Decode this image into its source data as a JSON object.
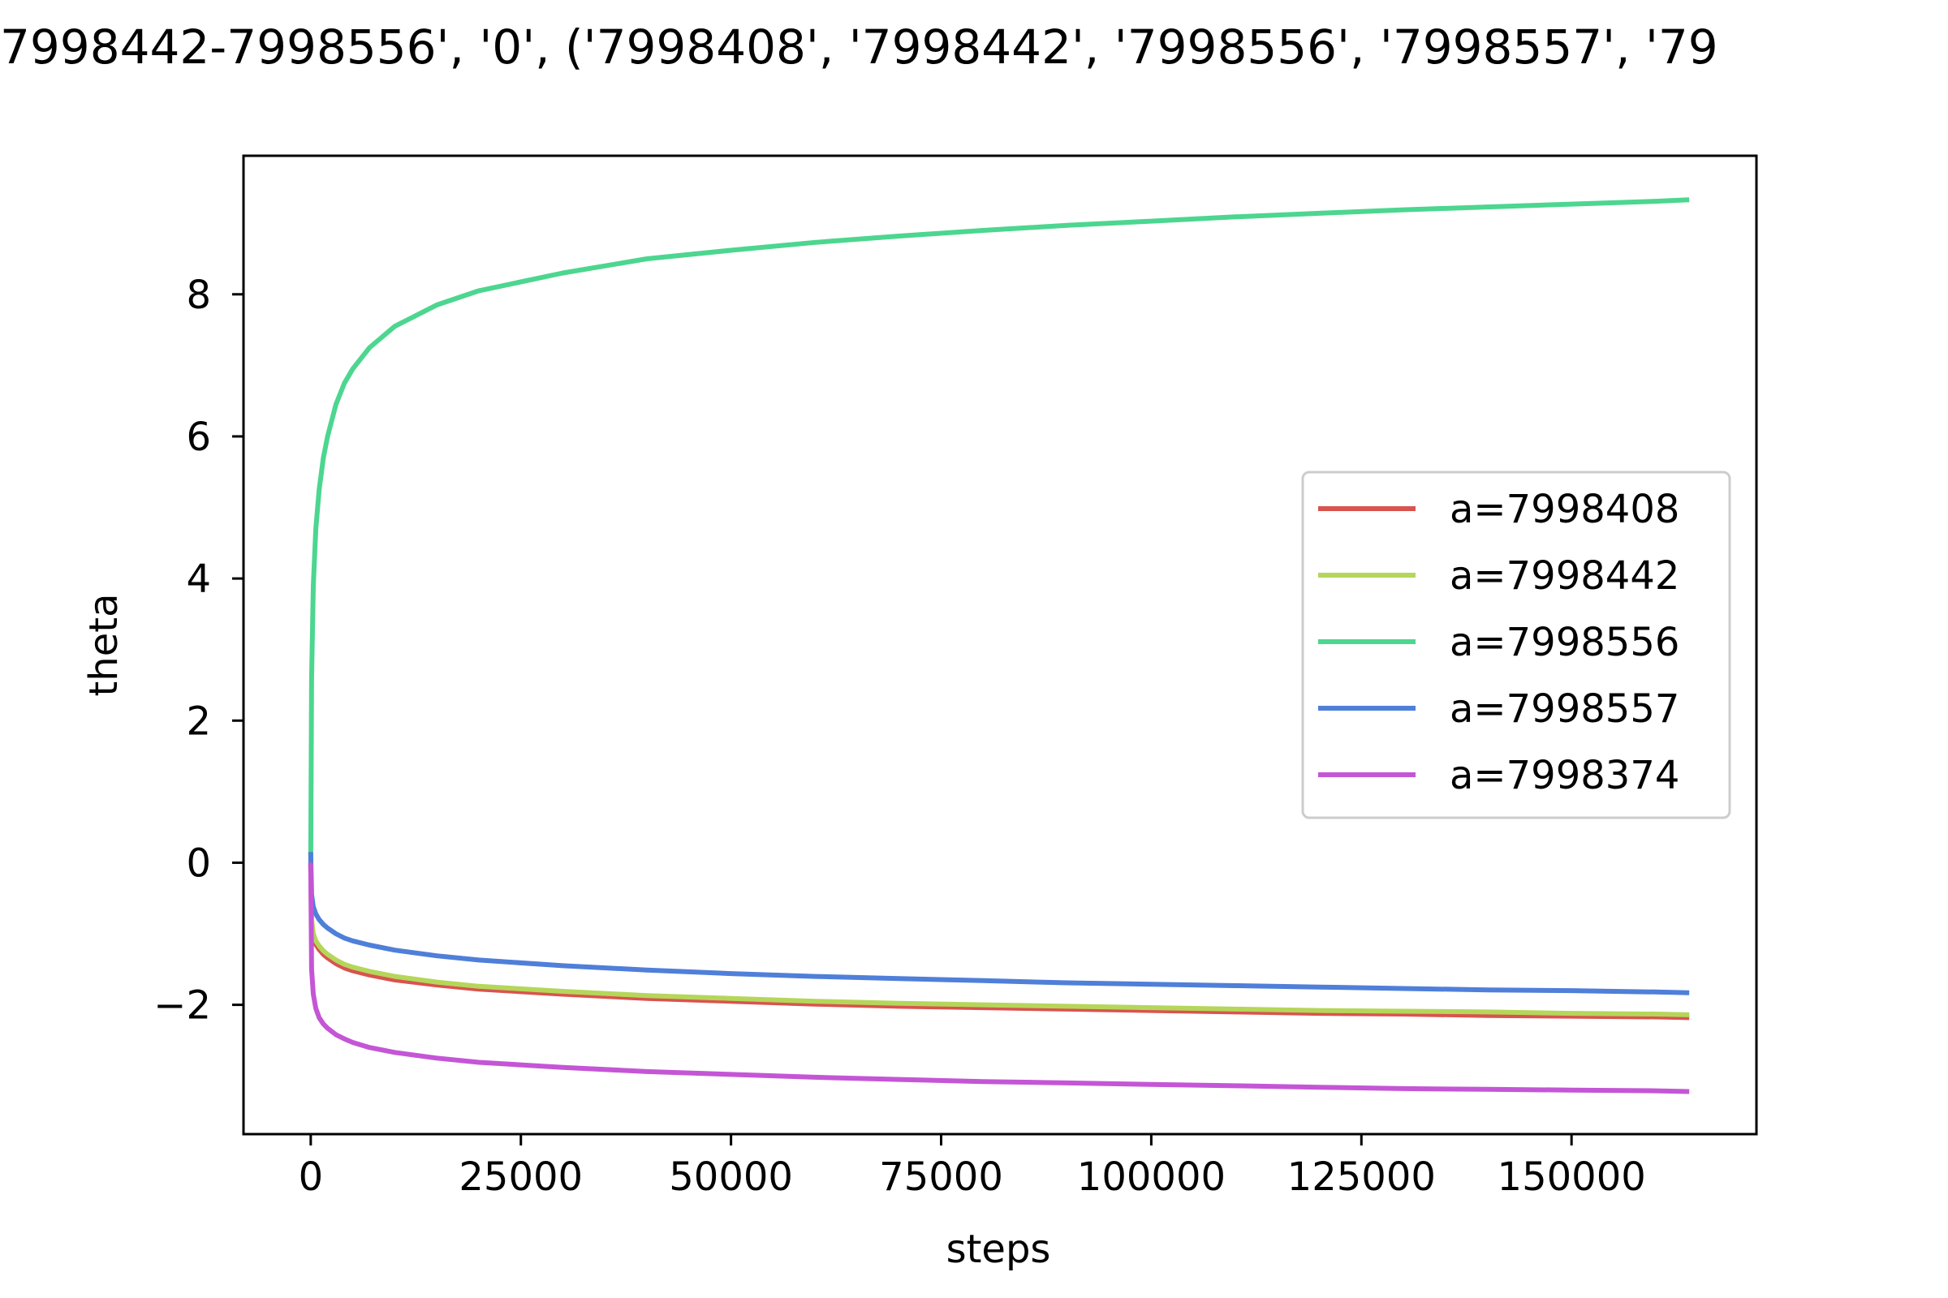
{
  "chart_data": {
    "type": "line",
    "title": "7998442-7998556', '0', ('7998408', '7998442', '7998556', '7998557', '79",
    "xlabel": "steps",
    "ylabel": "theta",
    "xlim": [
      -8000,
      172000
    ],
    "ylim": [
      -3.82,
      9.95
    ],
    "x_ticks": [
      0,
      25000,
      50000,
      75000,
      100000,
      125000,
      150000
    ],
    "x_tick_labels": [
      "0",
      "25000",
      "50000",
      "75000",
      "100000",
      "125000",
      "150000"
    ],
    "y_ticks": [
      -2,
      0,
      2,
      4,
      6,
      8
    ],
    "y_tick_labels": [
      "−2",
      "0",
      "2",
      "4",
      "6",
      8
    ],
    "grid": false,
    "legend_position": "center-right",
    "x": [
      0,
      100,
      300,
      600,
      1000,
      1500,
      2000,
      3000,
      4000,
      5000,
      7000,
      10000,
      15000,
      20000,
      30000,
      40000,
      50000,
      60000,
      70000,
      80000,
      90000,
      100000,
      110000,
      120000,
      130000,
      140000,
      150000,
      160000,
      164000
    ],
    "series": [
      {
        "name": "a=7998408",
        "color": "#d9534f",
        "values": [
          0.0,
          -0.85,
          -1.05,
          -1.15,
          -1.22,
          -1.29,
          -1.34,
          -1.42,
          -1.48,
          -1.52,
          -1.58,
          -1.65,
          -1.72,
          -1.78,
          -1.85,
          -1.91,
          -1.95,
          -1.99,
          -2.02,
          -2.04,
          -2.06,
          -2.08,
          -2.1,
          -2.12,
          -2.13,
          -2.15,
          -2.16,
          -2.17,
          -2.18
        ]
      },
      {
        "name": "a=7998442",
        "color": "#b5d65a",
        "values": [
          0.0,
          -0.8,
          -1.0,
          -1.1,
          -1.17,
          -1.24,
          -1.29,
          -1.37,
          -1.43,
          -1.47,
          -1.53,
          -1.6,
          -1.68,
          -1.74,
          -1.81,
          -1.87,
          -1.91,
          -1.95,
          -1.98,
          -2.0,
          -2.02,
          -2.04,
          -2.06,
          -2.08,
          -2.09,
          -2.1,
          -2.12,
          -2.13,
          -2.14
        ]
      },
      {
        "name": "a=7998556",
        "color": "#4cd68f",
        "values": [
          0.0,
          2.6,
          3.9,
          4.7,
          5.25,
          5.7,
          6.0,
          6.45,
          6.75,
          6.95,
          7.25,
          7.55,
          7.85,
          8.05,
          8.3,
          8.5,
          8.62,
          8.73,
          8.82,
          8.9,
          8.97,
          9.03,
          9.09,
          9.14,
          9.19,
          9.23,
          9.27,
          9.31,
          9.33
        ]
      },
      {
        "name": "a=7998557",
        "color": "#4f7fd9",
        "values": [
          0.15,
          -0.45,
          -0.62,
          -0.72,
          -0.8,
          -0.87,
          -0.92,
          -1.0,
          -1.06,
          -1.1,
          -1.16,
          -1.23,
          -1.31,
          -1.37,
          -1.45,
          -1.51,
          -1.56,
          -1.6,
          -1.63,
          -1.66,
          -1.69,
          -1.71,
          -1.73,
          -1.75,
          -1.77,
          -1.79,
          -1.8,
          -1.82,
          -1.83
        ]
      },
      {
        "name": "a=7998374",
        "color": "#c456d6",
        "values": [
          0.0,
          -1.5,
          -1.85,
          -2.05,
          -2.18,
          -2.27,
          -2.33,
          -2.42,
          -2.48,
          -2.53,
          -2.6,
          -2.67,
          -2.75,
          -2.81,
          -2.88,
          -2.94,
          -2.98,
          -3.02,
          -3.05,
          -3.08,
          -3.1,
          -3.12,
          -3.14,
          -3.16,
          -3.18,
          -3.19,
          -3.2,
          -3.21,
          -3.22
        ]
      }
    ]
  }
}
